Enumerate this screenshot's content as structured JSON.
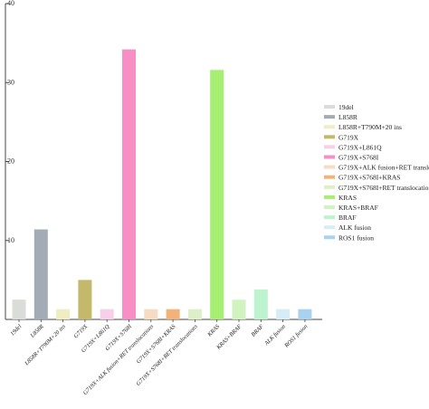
{
  "chart_data": {
    "type": "bar",
    "categories": [
      "19del",
      "L858R",
      "L858R+T790M+20 ins",
      "G719X",
      "G719X+L861Q",
      "G719X+S768I",
      "G719X+ALK fusion+RET translocations",
      "G719X+S768I+KRAS",
      "G719X+S768I+RET translocations",
      "KRAS",
      "KRAS+BRAF",
      "BRAF",
      "ALK fusion",
      "ROS1 fusion"
    ],
    "values": [
      2.5,
      11.4,
      1.3,
      5.0,
      1.3,
      34.2,
      1.3,
      1.3,
      1.3,
      31.6,
      2.5,
      3.8,
      1.3,
      1.3
    ],
    "colors": [
      "#d9dcd9",
      "#a3abb5",
      "#f0ecc4",
      "#c4b86a",
      "#f7cfe6",
      "#f78fc4",
      "#f6dcc2",
      "#f2b27a",
      "#dcefc6",
      "#a7ef73",
      "#d2f2c0",
      "#bdf3cf",
      "#d6edf7",
      "#a8d2ef"
    ],
    "legend": {
      "entries": [
        "19del",
        "L858R",
        "L858R+T790M+20 ins",
        "G719X",
        "G719X+L861Q",
        "G719X+S768I",
        "G719X+ALK fusion+RET translocations",
        "G719X+S768I+KRAS",
        "G719X+S768I+RET translocations",
        "KRAS",
        "KRAS+BRAF",
        "BRAF",
        "ALK fusion",
        "ROS1 fusion"
      ],
      "placement": "right"
    },
    "yticks": [
      10,
      20,
      30,
      40
    ],
    "ylim": [
      0,
      40
    ],
    "grid": false,
    "title": "",
    "xlabel": "",
    "ylabel": ""
  }
}
